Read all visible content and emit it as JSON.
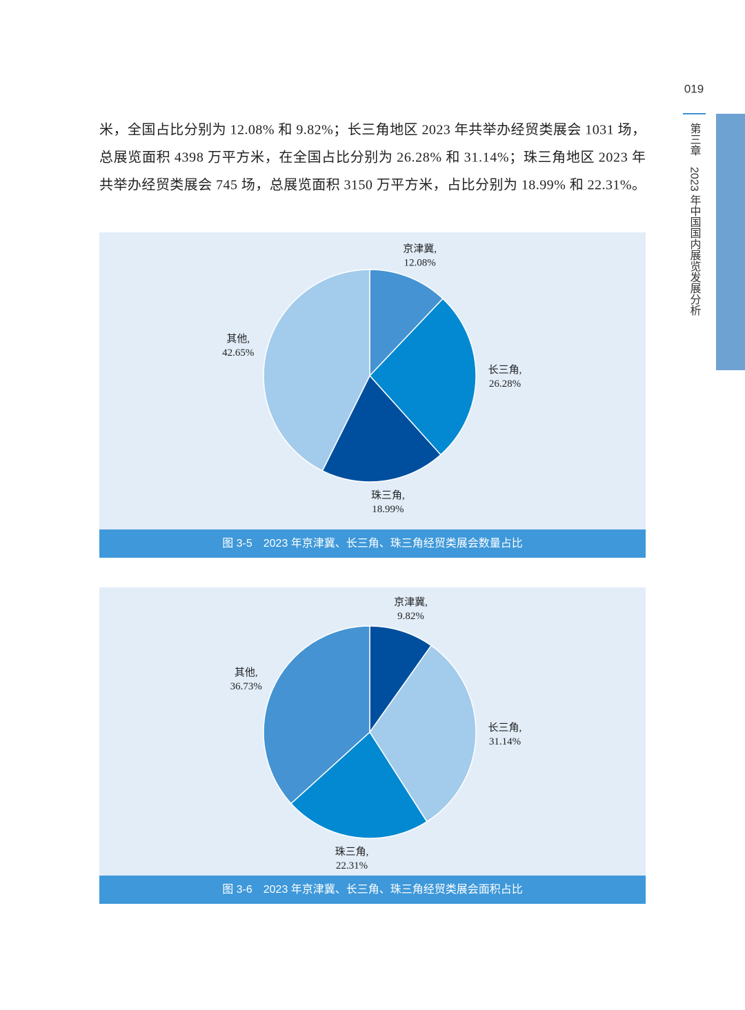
{
  "page_number": "019",
  "side_tab": "第三章　2023 年中国国内展览发展分析",
  "paragraph": [
    "米，全国占比分别为 12.08% 和 9.82%；长三角地区 2023 年共举办经贸类展会 1031 场，",
    "总展览面积 4398 万平方米，在全国占比分别为 26.28% 和 31.14%；珠三角地区 2023 年",
    "共举办经贸类展会 745 场，总展览面积 3150 万平方米，占比分别为 18.99% 和 22.31%。"
  ],
  "chart_data": [
    {
      "type": "pie",
      "caption": "图 3-5　2023 年京津冀、长三角、珠三角经贸类展会数量占比",
      "categories": [
        "京津冀,",
        "长三角,",
        "珠三角,",
        "其他,"
      ],
      "values": [
        12.08,
        26.28,
        18.99,
        42.65
      ],
      "value_labels": [
        "12.08%",
        "26.28%",
        "18.99%",
        "42.65%"
      ],
      "colors": [
        "#4593d2",
        "#0289d1",
        "#004f9f",
        "#a3cbeb"
      ]
    },
    {
      "type": "pie",
      "caption": "图 3-6　2023 年京津冀、长三角、珠三角经贸类展会面积占比",
      "categories": [
        "京津冀,",
        "长三角,",
        "珠三角,",
        "其他,"
      ],
      "values": [
        9.82,
        31.14,
        22.31,
        36.73
      ],
      "value_labels": [
        "9.82%",
        "31.14%",
        "22.31%",
        "36.73%"
      ],
      "colors": [
        "#004f9f",
        "#a3cbeb",
        "#0289d1",
        "#4593d2"
      ]
    }
  ]
}
